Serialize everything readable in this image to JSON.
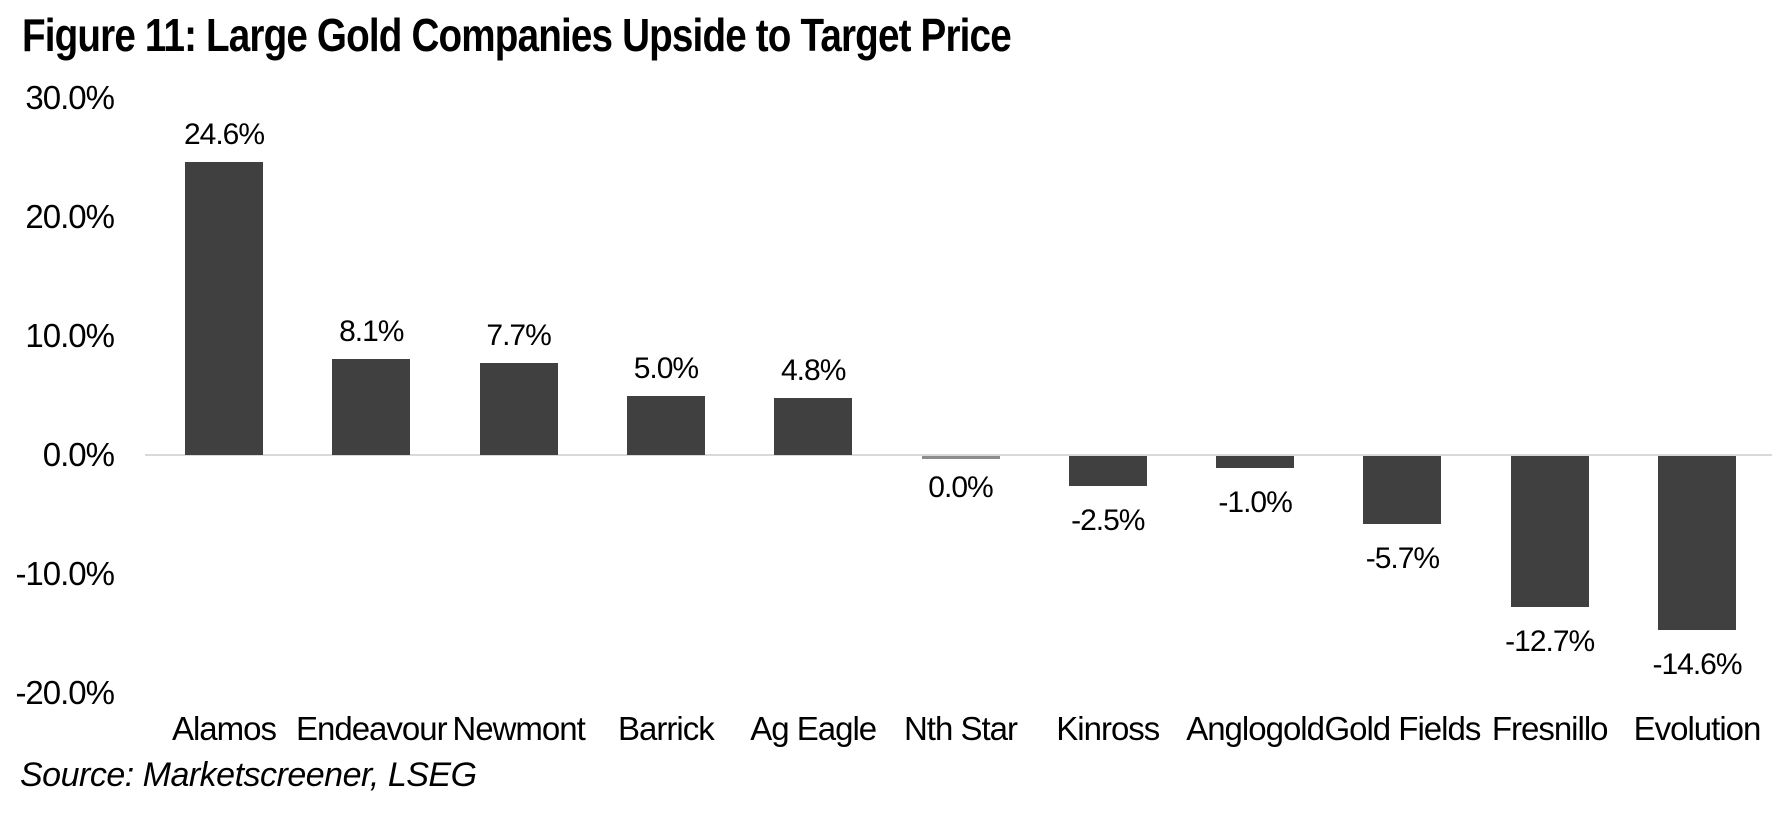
{
  "source_note": "Source: Marketscreener, LSEG",
  "colors": {
    "bar": "#404040",
    "zero_bar": "#8c8c8c",
    "gridline": "#d9d9d9",
    "text": "#000000",
    "background": "#ffffff"
  },
  "chart_data": {
    "type": "bar",
    "title": "Figure 11: Large Gold Companies Upside to Target Price",
    "categories": [
      "Alamos",
      "Endeavour",
      "Newmont",
      "Barrick",
      "Ag Eagle",
      "Nth Star",
      "Kinross",
      "Anglogold",
      "Gold Fields",
      "Fresnillo",
      "Evolution"
    ],
    "values": [
      24.6,
      8.1,
      7.7,
      5.0,
      4.8,
      0.0,
      -2.5,
      -1.0,
      -5.7,
      -12.7,
      -14.6
    ],
    "value_labels": [
      "24.6%",
      "8.1%",
      "7.7%",
      "5.0%",
      "4.8%",
      "0.0%",
      "-2.5%",
      "-1.0%",
      "-5.7%",
      "-12.7%",
      "-14.6%"
    ],
    "xlabel": "",
    "ylabel": "",
    "ylim": [
      -20,
      30
    ],
    "ytick_values": [
      30,
      20,
      10,
      0,
      -10,
      -20
    ],
    "ytick_labels": [
      "30.0%",
      "20.0%",
      "10.0%",
      "0.0%",
      "-10.0%",
      "-20.0%"
    ],
    "grid": "zero-baseline-only",
    "legend": "none",
    "bar_label_position": "outside-end"
  }
}
